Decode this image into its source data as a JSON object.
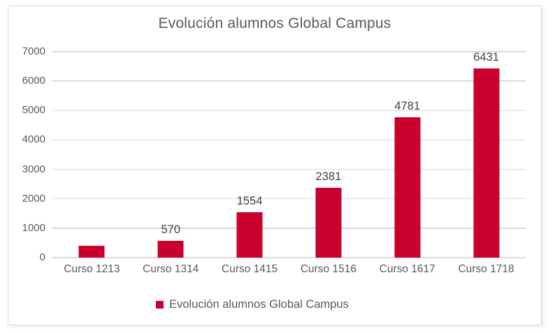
{
  "chart_data": {
    "type": "bar",
    "title": "Evolución alumnos Global Campus",
    "categories": [
      "Curso 1213",
      "Curso 1314",
      "Curso 1415",
      "Curso 1516",
      "Curso 1617",
      "Curso 1718"
    ],
    "values": [
      400,
      570,
      1554,
      2381,
      4781,
      6431
    ],
    "data_labels": [
      "",
      "570",
      "1554",
      "2381",
      "4781",
      "6431"
    ],
    "xlabel": "",
    "ylabel": "",
    "ylim": [
      0,
      7000
    ],
    "ytick_step": 1000,
    "yticks": [
      "0",
      "1000",
      "2000",
      "3000",
      "4000",
      "5000",
      "6000",
      "7000"
    ],
    "grid": true,
    "legend": {
      "position": "bottom",
      "entries": [
        {
          "label": "Evolución alumnos Global Campus",
          "marker": "square"
        }
      ]
    }
  },
  "colors": {
    "bar": "#C9002E",
    "gridline": "#D9D9D9",
    "axis_text": "#595959",
    "title_text": "#595959",
    "data_label_text": "#404040",
    "frame_border": "#D9D9D9",
    "background": "#FFFFFF"
  }
}
